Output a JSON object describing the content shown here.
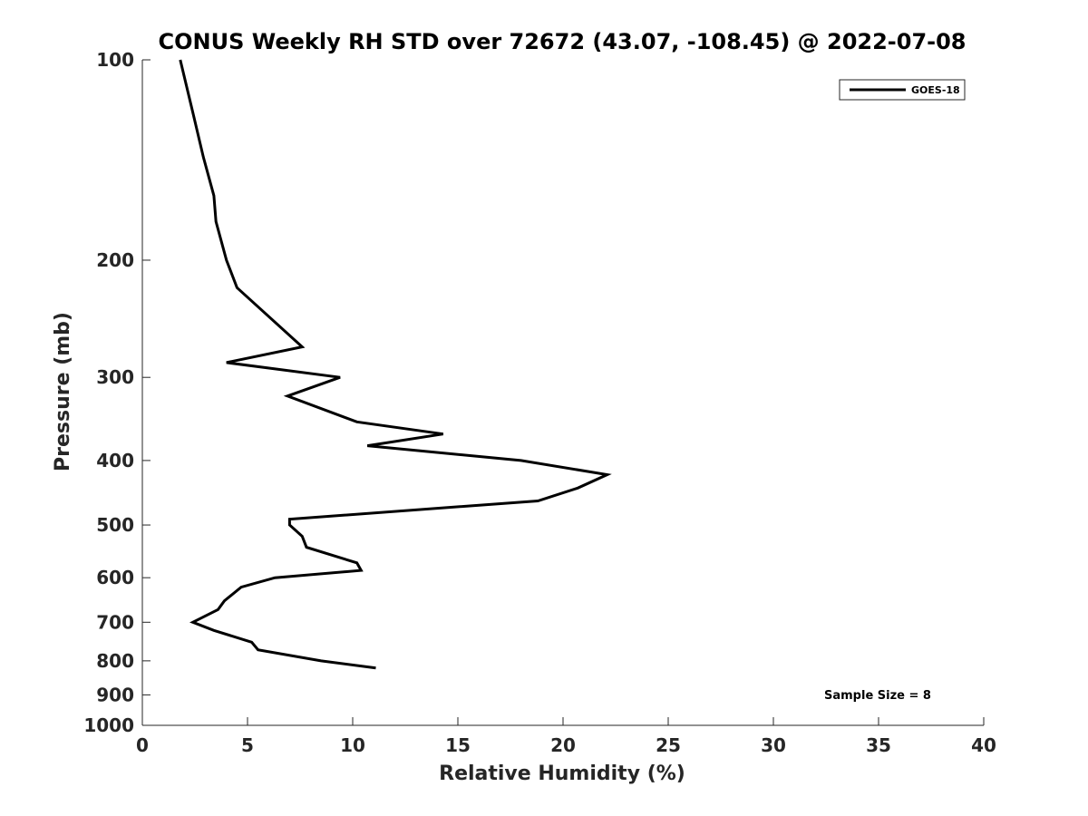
{
  "chart_data": {
    "type": "line",
    "title": "CONUS Weekly RH STD over 72672 (43.07, -108.45) @ 2022-07-08",
    "xlabel": "Relative Humidity (%)",
    "ylabel": "Pressure (mb)",
    "xlim": [
      0,
      40
    ],
    "ylim": [
      100,
      1000
    ],
    "y_scale": "log",
    "y_direction": "reversed",
    "x_ticks": [
      0,
      5,
      10,
      15,
      20,
      25,
      30,
      35,
      40
    ],
    "y_ticks": [
      100,
      200,
      300,
      400,
      500,
      600,
      700,
      800,
      900,
      1000
    ],
    "grid": false,
    "legend_position": "top-right",
    "line_color": "#000000",
    "annotation": "Sample Size = 8",
    "series": [
      {
        "name": "GOES-18",
        "x": [
          1.8,
          2.4,
          2.9,
          3.4,
          3.5,
          4.0,
          4.5,
          7.6,
          4.0,
          9.4,
          6.9,
          10.2,
          14.3,
          10.7,
          18.0,
          22.1,
          20.7,
          18.8,
          7.0,
          7.0,
          7.6,
          7.8,
          10.2,
          10.4,
          6.3,
          4.7,
          3.9,
          3.6,
          2.4,
          3.4,
          5.2,
          5.5,
          8.5,
          11.1
        ],
        "y": [
          100,
          120,
          140,
          160,
          175,
          200,
          220,
          270,
          285,
          300,
          320,
          350,
          365,
          380,
          400,
          420,
          440,
          460,
          490,
          500,
          520,
          540,
          570,
          585,
          600,
          620,
          650,
          670,
          700,
          720,
          750,
          770,
          800,
          820
        ]
      }
    ]
  }
}
